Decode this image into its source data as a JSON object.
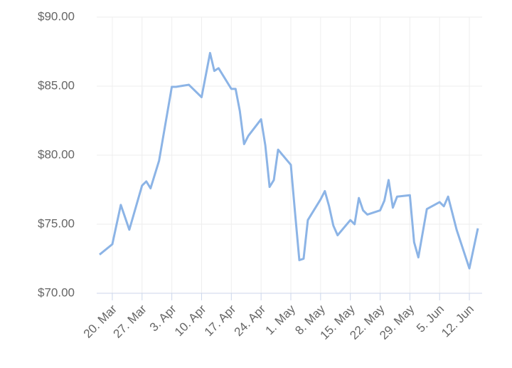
{
  "chart_data": {
    "type": "line",
    "x": [
      "17. Mar",
      "20. Mar",
      "22. Mar",
      "24. Mar",
      "27. Mar",
      "28. Mar",
      "29. Mar",
      "31. Mar",
      "3. Apr",
      "4. Apr",
      "7. Apr",
      "10. Apr",
      "12. Apr",
      "13. Apr",
      "14. Apr",
      "17. Apr",
      "18. Apr",
      "19. Apr",
      "20. Apr",
      "21. Apr",
      "24. Apr",
      "25. Apr",
      "26. Apr",
      "27. Apr",
      "28. Apr",
      "1. May",
      "2. May",
      "3. May",
      "4. May",
      "5. May",
      "8. May",
      "9. May",
      "10. May",
      "11. May",
      "12. May",
      "15. May",
      "16. May",
      "17. May",
      "18. May",
      "19. May",
      "22. May",
      "23. May",
      "24. May",
      "25. May",
      "26. May",
      "29. May",
      "30. May",
      "31. May",
      "2. Jun",
      "5. Jun",
      "6. Jun",
      "7. Jun",
      "9. Jun",
      "12. Jun",
      "14. Jun"
    ],
    "series": [
      {
        "color": "#8cb4e6",
        "values": [
          72.8,
          73.55,
          76.4,
          74.6,
          77.8,
          78.1,
          77.6,
          79.6,
          84.95,
          84.95,
          85.1,
          84.2,
          87.4,
          86.1,
          86.3,
          84.8,
          84.8,
          83.2,
          80.8,
          81.4,
          82.6,
          80.7,
          77.7,
          78.2,
          80.4,
          79.3,
          75.8,
          72.4,
          72.5,
          75.3,
          76.8,
          77.4,
          76.3,
          74.9,
          74.2,
          75.3,
          75.0,
          76.9,
          76.0,
          75.7,
          76.0,
          76.7,
          78.2,
          76.2,
          77.0,
          77.1,
          73.7,
          72.6,
          76.1,
          76.6,
          76.3,
          77.0,
          74.6,
          71.8,
          74.7
        ]
      }
    ],
    "xticks": [
      "20. Mar",
      "27. Mar",
      "3. Apr",
      "10. Apr",
      "17. Apr",
      "24. Apr",
      "1. May",
      "8. May",
      "15. May",
      "22. May",
      "29. May",
      "5. Jun",
      "12. Jun"
    ],
    "ylim": [
      70,
      90
    ],
    "yticks": [
      {
        "value": 70,
        "label": "$70.00"
      },
      {
        "value": 75,
        "label": "$75.00"
      },
      {
        "value": 80,
        "label": "$80.00"
      },
      {
        "value": 85,
        "label": "$85.00"
      },
      {
        "value": 90,
        "label": "$90.00"
      }
    ],
    "grid": true
  }
}
